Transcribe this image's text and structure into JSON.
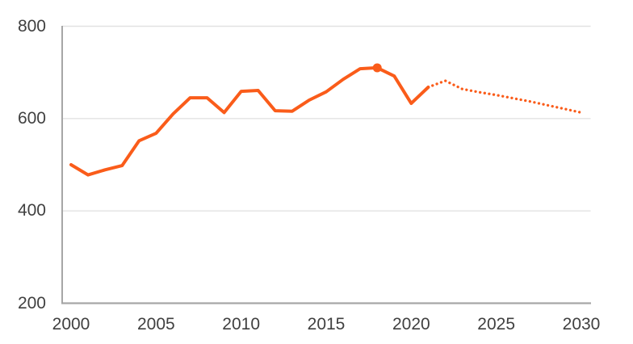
{
  "chart_data": {
    "type": "line",
    "title": "",
    "xlabel": "",
    "ylabel": "",
    "xlim": [
      2000,
      2030
    ],
    "ylim": [
      200,
      800
    ],
    "x_tick_labels": [
      "2000",
      "2005",
      "2010",
      "2015",
      "2020",
      "2025",
      "2030"
    ],
    "x_tick_values": [
      2000,
      2005,
      2010,
      2015,
      2020,
      2025,
      2030
    ],
    "y_tick_labels": [
      "200",
      "400",
      "600",
      "800"
    ],
    "y_tick_values": [
      200,
      400,
      600,
      800
    ],
    "grid": "horizontal-gridlines-on",
    "legend_position": "none",
    "colors": {
      "line": "#FA5C1A",
      "axis": "#A6A6A6",
      "gridline": "#E2E2E2",
      "tick_label": "#404040",
      "background": "#FFFFFF"
    },
    "series": [
      {
        "name": "historical",
        "style": "solid",
        "x": [
          2000,
          2001,
          2002,
          2003,
          2004,
          2005,
          2006,
          2007,
          2008,
          2009,
          2010,
          2011,
          2012,
          2013,
          2014,
          2015,
          2016,
          2017,
          2018,
          2019,
          2020,
          2021
        ],
        "values": [
          500,
          478,
          489,
          498,
          552,
          568,
          610,
          645,
          645,
          613,
          659,
          661,
          617,
          616,
          640,
          658,
          685,
          708,
          710,
          692,
          633,
          668
        ]
      },
      {
        "name": "forecast",
        "style": "dotted",
        "x": [
          2021,
          2022,
          2023,
          2024,
          2025,
          2026,
          2027,
          2028,
          2029,
          2030
        ],
        "values": [
          668,
          682,
          664,
          657,
          651,
          644,
          637,
          629,
          621,
          613
        ]
      }
    ],
    "highlight_marker": {
      "x": 2018,
      "value": 710
    }
  }
}
